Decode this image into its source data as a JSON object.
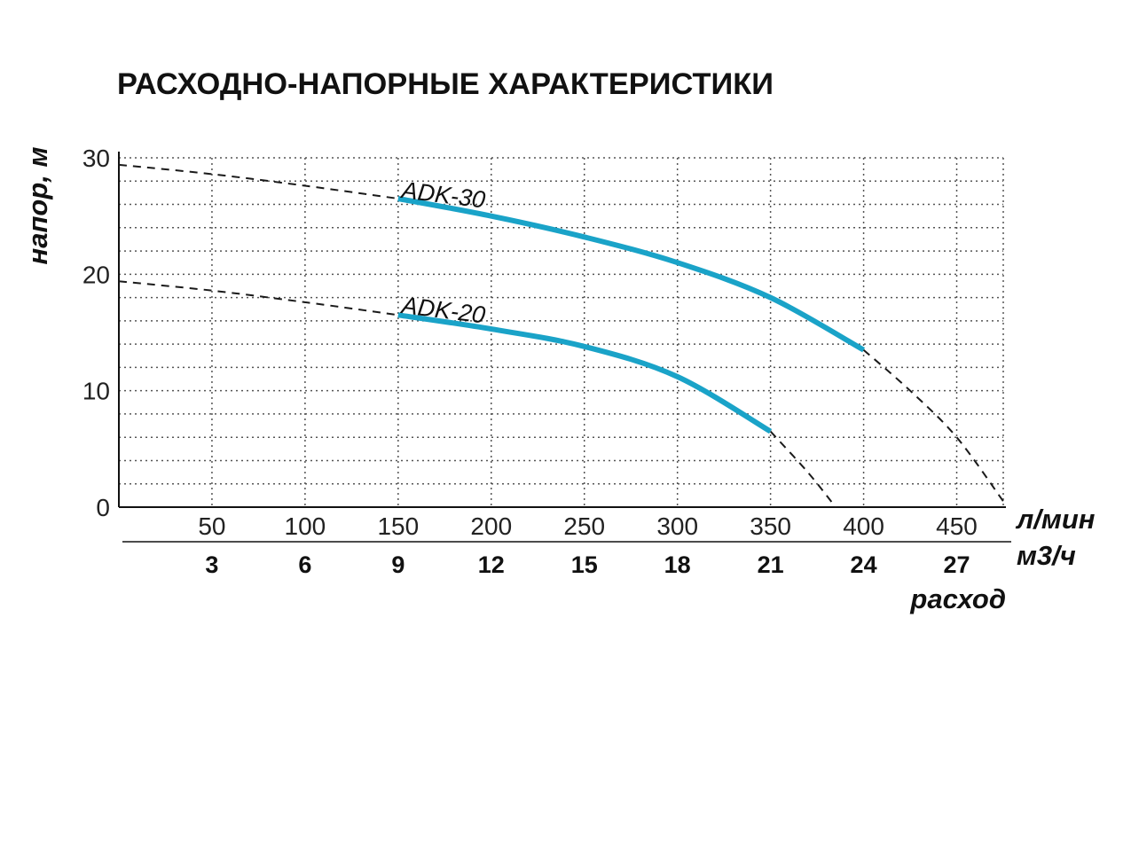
{
  "chart_data": {
    "type": "line",
    "title": "РАСХОДНО-НАПОРНЫЕ ХАРАКТЕРИСТИКИ",
    "ylabel": "напор, м",
    "xlabel": "расход",
    "x_unit_primary": "л/мин",
    "x_unit_secondary": "м3/ч",
    "ylim": [
      0,
      30
    ],
    "xlim": [
      0,
      475
    ],
    "yticks": [
      "0",
      "10",
      "20",
      "30"
    ],
    "yticks_values": [
      0,
      10,
      20,
      30
    ],
    "xticks_lpm": [
      "50",
      "100",
      "150",
      "200",
      "250",
      "300",
      "350",
      "400",
      "450"
    ],
    "xticks_lpm_values": [
      50,
      100,
      150,
      200,
      250,
      300,
      350,
      400,
      450
    ],
    "xticks_m3h": [
      "3",
      "6",
      "9",
      "12",
      "15",
      "18",
      "21",
      "24",
      "27"
    ],
    "grid": true,
    "colors": {
      "series": "#1aa3c8",
      "extrapolation": "#1a1a1a",
      "axis": "#111111",
      "grid": "#555555"
    },
    "series": [
      {
        "name": "ADK-30",
        "x": [
          150,
          200,
          250,
          300,
          350,
          400
        ],
        "y": [
          26.5,
          25.0,
          23.2,
          21.0,
          18.0,
          13.5
        ],
        "extrapolated_x": [
          0,
          50,
          100,
          150,
          400,
          425,
          450,
          475
        ],
        "extrapolated_y": [
          29.4,
          28.6,
          27.6,
          26.5,
          13.5,
          10.0,
          6.0,
          0.5
        ]
      },
      {
        "name": "ADK-20",
        "x": [
          150,
          200,
          250,
          300,
          350
        ],
        "y": [
          16.5,
          15.3,
          13.8,
          11.2,
          6.5
        ],
        "extrapolated_x": [
          0,
          50,
          100,
          150,
          350,
          370,
          385
        ],
        "extrapolated_y": [
          19.4,
          18.6,
          17.6,
          16.5,
          6.5,
          3.0,
          0.0
        ]
      }
    ]
  }
}
